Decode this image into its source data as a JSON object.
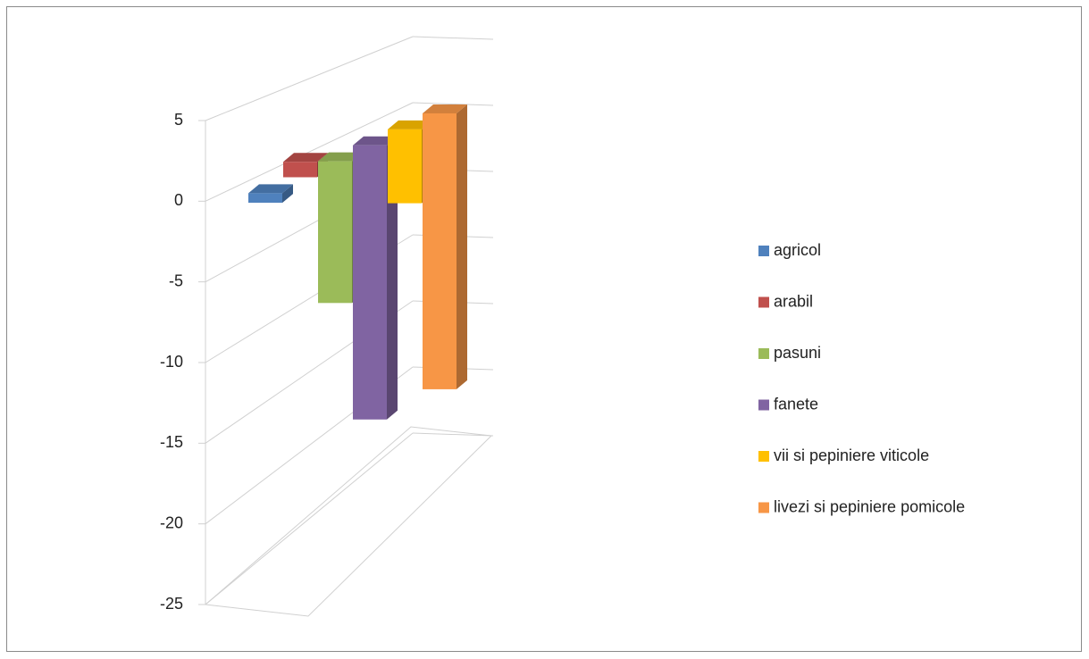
{
  "chart_data": {
    "type": "bar",
    "three_d": true,
    "series": [
      {
        "name": "agricol",
        "color": "#4f81bd",
        "values": [
          -0.6
        ]
      },
      {
        "name": "arabil",
        "color": "#c0504d",
        "values": [
          1
        ]
      },
      {
        "name": "pasuni",
        "color": "#9bbb59",
        "values": [
          -9.5
        ]
      },
      {
        "name": "fanete",
        "color": "#8064a2",
        "values": [
          -19
        ]
      },
      {
        "name": "vii si pepiniere viticole",
        "color": "#ffc000",
        "values": [
          -5.3
        ]
      },
      {
        "name": "livezi si pepiniere pomicole",
        "color": "#f79646",
        "values": [
          -20.5
        ]
      }
    ],
    "ylim": [
      -25,
      5
    ],
    "yticks": [
      -25,
      -20,
      -15,
      -10,
      -5,
      0,
      5
    ],
    "grid": true,
    "legend": "right"
  }
}
